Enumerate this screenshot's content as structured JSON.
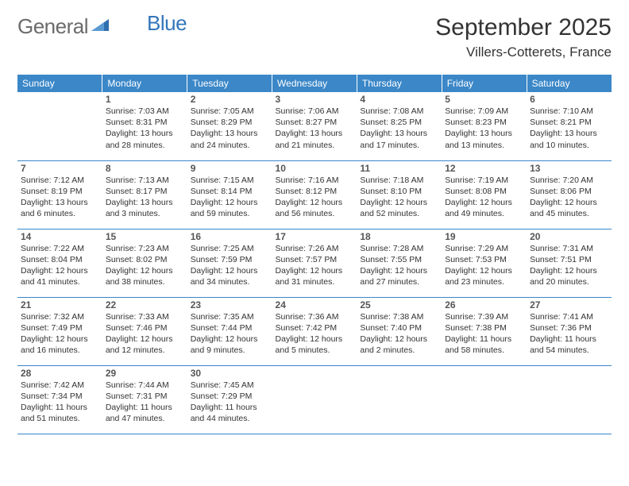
{
  "brand": {
    "part1": "General",
    "part2": "Blue"
  },
  "title": "September 2025",
  "location": "Villers-Cotterets, France",
  "colors": {
    "header_bg": "#3b87c8",
    "header_text": "#ffffff",
    "brand_gray": "#6b6b6b",
    "brand_blue": "#3376bb",
    "cell_border": "#3b87c8",
    "text": "#333333",
    "background": "#ffffff"
  },
  "day_headers": [
    "Sunday",
    "Monday",
    "Tuesday",
    "Wednesday",
    "Thursday",
    "Friday",
    "Saturday"
  ],
  "weeks": [
    [
      null,
      {
        "n": "1",
        "sr": "Sunrise: 7:03 AM",
        "ss": "Sunset: 8:31 PM",
        "d1": "Daylight: 13 hours",
        "d2": "and 28 minutes."
      },
      {
        "n": "2",
        "sr": "Sunrise: 7:05 AM",
        "ss": "Sunset: 8:29 PM",
        "d1": "Daylight: 13 hours",
        "d2": "and 24 minutes."
      },
      {
        "n": "3",
        "sr": "Sunrise: 7:06 AM",
        "ss": "Sunset: 8:27 PM",
        "d1": "Daylight: 13 hours",
        "d2": "and 21 minutes."
      },
      {
        "n": "4",
        "sr": "Sunrise: 7:08 AM",
        "ss": "Sunset: 8:25 PM",
        "d1": "Daylight: 13 hours",
        "d2": "and 17 minutes."
      },
      {
        "n": "5",
        "sr": "Sunrise: 7:09 AM",
        "ss": "Sunset: 8:23 PM",
        "d1": "Daylight: 13 hours",
        "d2": "and 13 minutes."
      },
      {
        "n": "6",
        "sr": "Sunrise: 7:10 AM",
        "ss": "Sunset: 8:21 PM",
        "d1": "Daylight: 13 hours",
        "d2": "and 10 minutes."
      }
    ],
    [
      {
        "n": "7",
        "sr": "Sunrise: 7:12 AM",
        "ss": "Sunset: 8:19 PM",
        "d1": "Daylight: 13 hours",
        "d2": "and 6 minutes."
      },
      {
        "n": "8",
        "sr": "Sunrise: 7:13 AM",
        "ss": "Sunset: 8:17 PM",
        "d1": "Daylight: 13 hours",
        "d2": "and 3 minutes."
      },
      {
        "n": "9",
        "sr": "Sunrise: 7:15 AM",
        "ss": "Sunset: 8:14 PM",
        "d1": "Daylight: 12 hours",
        "d2": "and 59 minutes."
      },
      {
        "n": "10",
        "sr": "Sunrise: 7:16 AM",
        "ss": "Sunset: 8:12 PM",
        "d1": "Daylight: 12 hours",
        "d2": "and 56 minutes."
      },
      {
        "n": "11",
        "sr": "Sunrise: 7:18 AM",
        "ss": "Sunset: 8:10 PM",
        "d1": "Daylight: 12 hours",
        "d2": "and 52 minutes."
      },
      {
        "n": "12",
        "sr": "Sunrise: 7:19 AM",
        "ss": "Sunset: 8:08 PM",
        "d1": "Daylight: 12 hours",
        "d2": "and 49 minutes."
      },
      {
        "n": "13",
        "sr": "Sunrise: 7:20 AM",
        "ss": "Sunset: 8:06 PM",
        "d1": "Daylight: 12 hours",
        "d2": "and 45 minutes."
      }
    ],
    [
      {
        "n": "14",
        "sr": "Sunrise: 7:22 AM",
        "ss": "Sunset: 8:04 PM",
        "d1": "Daylight: 12 hours",
        "d2": "and 41 minutes."
      },
      {
        "n": "15",
        "sr": "Sunrise: 7:23 AM",
        "ss": "Sunset: 8:02 PM",
        "d1": "Daylight: 12 hours",
        "d2": "and 38 minutes."
      },
      {
        "n": "16",
        "sr": "Sunrise: 7:25 AM",
        "ss": "Sunset: 7:59 PM",
        "d1": "Daylight: 12 hours",
        "d2": "and 34 minutes."
      },
      {
        "n": "17",
        "sr": "Sunrise: 7:26 AM",
        "ss": "Sunset: 7:57 PM",
        "d1": "Daylight: 12 hours",
        "d2": "and 31 minutes."
      },
      {
        "n": "18",
        "sr": "Sunrise: 7:28 AM",
        "ss": "Sunset: 7:55 PM",
        "d1": "Daylight: 12 hours",
        "d2": "and 27 minutes."
      },
      {
        "n": "19",
        "sr": "Sunrise: 7:29 AM",
        "ss": "Sunset: 7:53 PM",
        "d1": "Daylight: 12 hours",
        "d2": "and 23 minutes."
      },
      {
        "n": "20",
        "sr": "Sunrise: 7:31 AM",
        "ss": "Sunset: 7:51 PM",
        "d1": "Daylight: 12 hours",
        "d2": "and 20 minutes."
      }
    ],
    [
      {
        "n": "21",
        "sr": "Sunrise: 7:32 AM",
        "ss": "Sunset: 7:49 PM",
        "d1": "Daylight: 12 hours",
        "d2": "and 16 minutes."
      },
      {
        "n": "22",
        "sr": "Sunrise: 7:33 AM",
        "ss": "Sunset: 7:46 PM",
        "d1": "Daylight: 12 hours",
        "d2": "and 12 minutes."
      },
      {
        "n": "23",
        "sr": "Sunrise: 7:35 AM",
        "ss": "Sunset: 7:44 PM",
        "d1": "Daylight: 12 hours",
        "d2": "and 9 minutes."
      },
      {
        "n": "24",
        "sr": "Sunrise: 7:36 AM",
        "ss": "Sunset: 7:42 PM",
        "d1": "Daylight: 12 hours",
        "d2": "and 5 minutes."
      },
      {
        "n": "25",
        "sr": "Sunrise: 7:38 AM",
        "ss": "Sunset: 7:40 PM",
        "d1": "Daylight: 12 hours",
        "d2": "and 2 minutes."
      },
      {
        "n": "26",
        "sr": "Sunrise: 7:39 AM",
        "ss": "Sunset: 7:38 PM",
        "d1": "Daylight: 11 hours",
        "d2": "and 58 minutes."
      },
      {
        "n": "27",
        "sr": "Sunrise: 7:41 AM",
        "ss": "Sunset: 7:36 PM",
        "d1": "Daylight: 11 hours",
        "d2": "and 54 minutes."
      }
    ],
    [
      {
        "n": "28",
        "sr": "Sunrise: 7:42 AM",
        "ss": "Sunset: 7:34 PM",
        "d1": "Daylight: 11 hours",
        "d2": "and 51 minutes."
      },
      {
        "n": "29",
        "sr": "Sunrise: 7:44 AM",
        "ss": "Sunset: 7:31 PM",
        "d1": "Daylight: 11 hours",
        "d2": "and 47 minutes."
      },
      {
        "n": "30",
        "sr": "Sunrise: 7:45 AM",
        "ss": "Sunset: 7:29 PM",
        "d1": "Daylight: 11 hours",
        "d2": "and 44 minutes."
      },
      null,
      null,
      null,
      null
    ]
  ]
}
